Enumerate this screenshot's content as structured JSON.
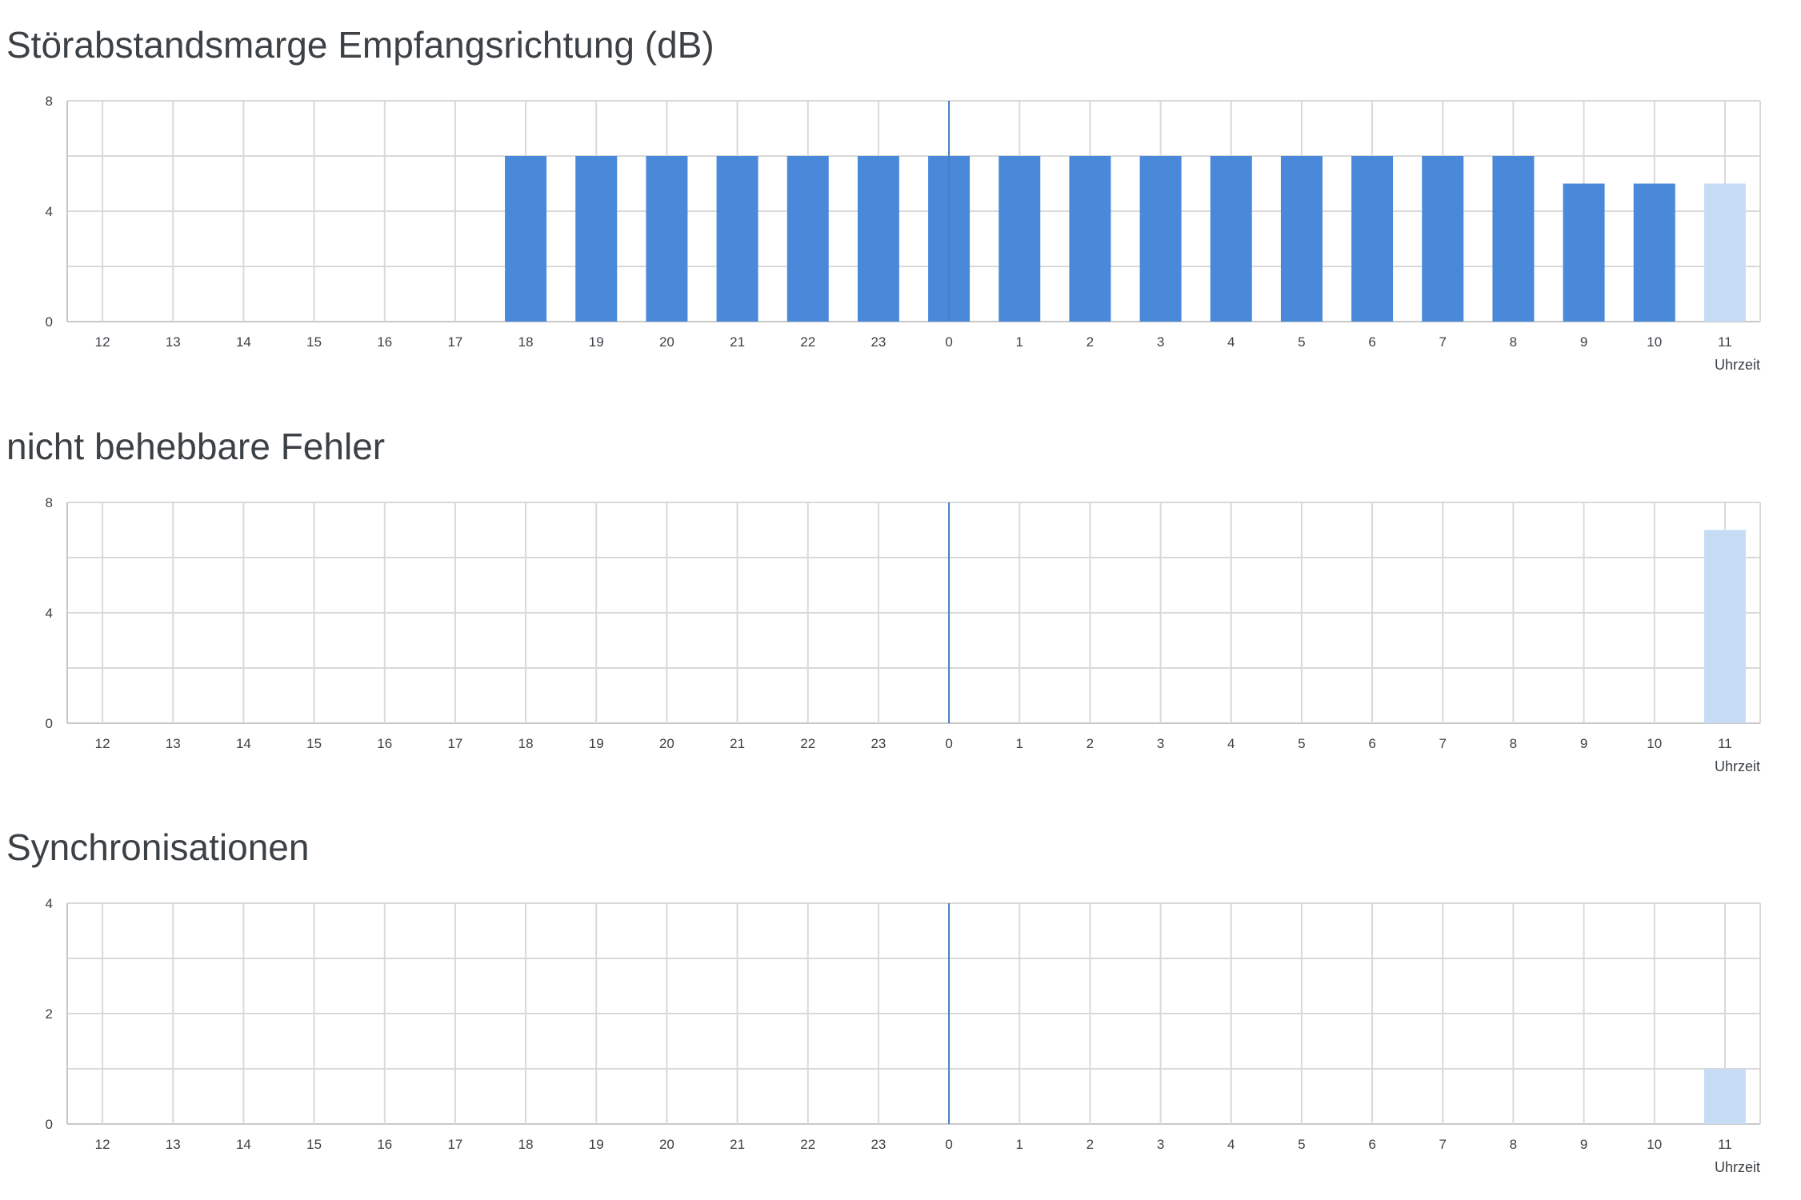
{
  "colors": {
    "bar": "#4a89d9",
    "bar_current": "#c6dcf4",
    "grid": "#d9d9d9",
    "axis": "#c8c8c8",
    "midnight_line": "#4a7fc4",
    "text": "#3c4146"
  },
  "chart_data": [
    {
      "type": "bar",
      "title": "Störabstandsmarge Empfangsrichtung (dB)",
      "xlabel": "Uhrzeit",
      "ylabel": "",
      "categories": [
        "12",
        "13",
        "14",
        "15",
        "16",
        "17",
        "18",
        "19",
        "20",
        "21",
        "22",
        "23",
        "0",
        "1",
        "2",
        "3",
        "4",
        "5",
        "6",
        "7",
        "8",
        "9",
        "10",
        "11"
      ],
      "values": [
        null,
        null,
        null,
        null,
        null,
        null,
        6,
        6,
        6,
        6,
        6,
        6,
        6,
        6,
        6,
        6,
        6,
        6,
        6,
        6,
        6,
        5,
        5,
        5
      ],
      "highlight_last": true,
      "ylim": [
        0,
        8
      ],
      "yticks": [
        0,
        4,
        8
      ],
      "grid_step": 2,
      "grid": true
    },
    {
      "type": "bar",
      "title": "nicht behebbare Fehler",
      "xlabel": "Uhrzeit",
      "ylabel": "",
      "categories": [
        "12",
        "13",
        "14",
        "15",
        "16",
        "17",
        "18",
        "19",
        "20",
        "21",
        "22",
        "23",
        "0",
        "1",
        "2",
        "3",
        "4",
        "5",
        "6",
        "7",
        "8",
        "9",
        "10",
        "11"
      ],
      "values": [
        null,
        null,
        null,
        null,
        null,
        null,
        null,
        null,
        null,
        null,
        null,
        null,
        null,
        null,
        null,
        null,
        null,
        null,
        null,
        null,
        null,
        null,
        null,
        7
      ],
      "highlight_last": true,
      "ylim": [
        0,
        8
      ],
      "yticks": [
        0,
        4,
        8
      ],
      "grid_step": 2,
      "grid": true
    },
    {
      "type": "bar",
      "title": "Synchronisationen",
      "xlabel": "Uhrzeit",
      "ylabel": "",
      "categories": [
        "12",
        "13",
        "14",
        "15",
        "16",
        "17",
        "18",
        "19",
        "20",
        "21",
        "22",
        "23",
        "0",
        "1",
        "2",
        "3",
        "4",
        "5",
        "6",
        "7",
        "8",
        "9",
        "10",
        "11"
      ],
      "values": [
        null,
        null,
        null,
        null,
        null,
        null,
        null,
        null,
        null,
        null,
        null,
        null,
        null,
        null,
        null,
        null,
        null,
        null,
        null,
        null,
        null,
        null,
        null,
        1
      ],
      "highlight_last": true,
      "ylim": [
        0,
        4
      ],
      "yticks": [
        0,
        2,
        4
      ],
      "grid_step": 1,
      "grid": true
    }
  ]
}
